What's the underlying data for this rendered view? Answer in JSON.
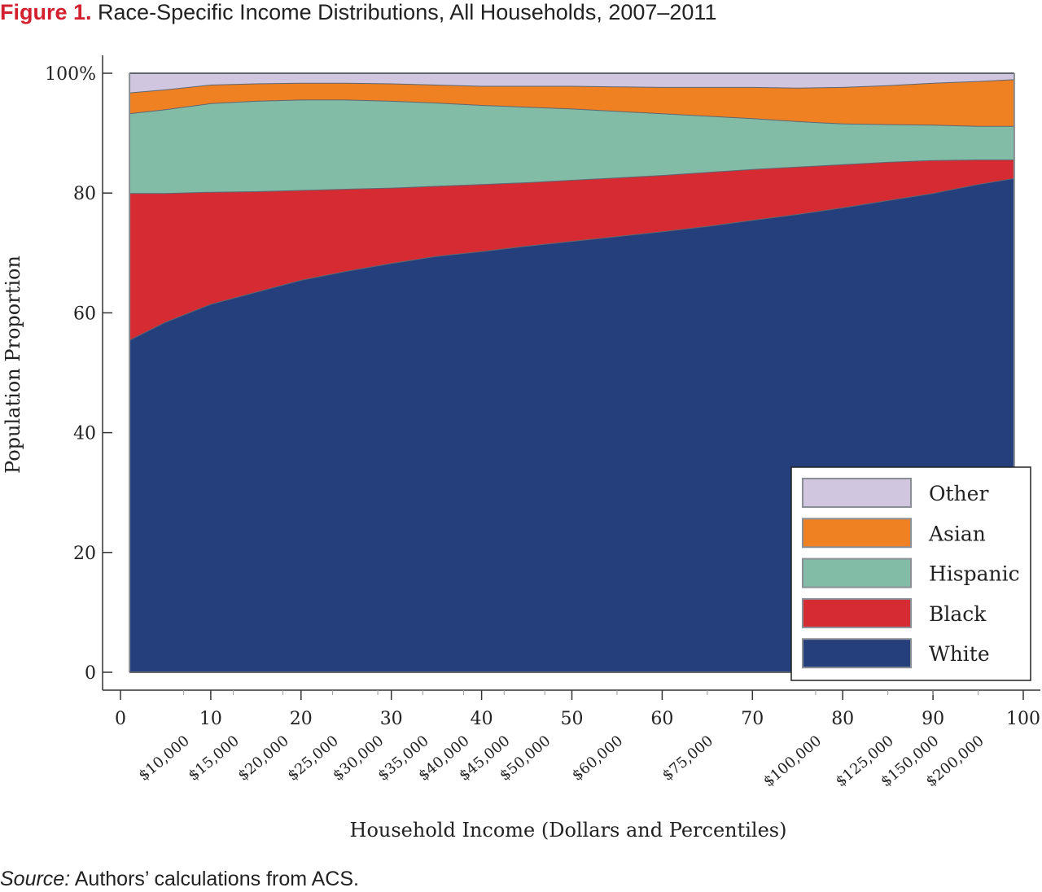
{
  "figure": {
    "label": "Figure 1.",
    "title": "Race-Specific Income Distributions, All Households, 2007–2011"
  },
  "source": {
    "label": "Source:",
    "text": "Authors’ calculations from ACS."
  },
  "chart_data": {
    "type": "area",
    "stacked": true,
    "xlabel": "Household Income (Dollars and Percentiles)",
    "ylabel": "Population Proportion",
    "xlim": [
      0,
      100
    ],
    "ylim": [
      0,
      100
    ],
    "x_ticks": [
      0,
      10,
      20,
      30,
      40,
      50,
      60,
      70,
      80,
      90,
      100
    ],
    "y_ticks": [
      {
        "value": 0,
        "label": "0"
      },
      {
        "value": 20,
        "label": "20"
      },
      {
        "value": 40,
        "label": "40"
      },
      {
        "value": 60,
        "label": "60"
      },
      {
        "value": 80,
        "label": "80"
      },
      {
        "value": 100,
        "label": "100%"
      }
    ],
    "dollar_ticks": [
      {
        "percentile": 7,
        "label": "$10,000"
      },
      {
        "percentile": 12.5,
        "label": "$15,000"
      },
      {
        "percentile": 18,
        "label": "$20,000"
      },
      {
        "percentile": 23.5,
        "label": "$25,000"
      },
      {
        "percentile": 28.5,
        "label": "$30,000"
      },
      {
        "percentile": 33.5,
        "label": "$35,000"
      },
      {
        "percentile": 38,
        "label": "$40,000"
      },
      {
        "percentile": 42.5,
        "label": "$45,000"
      },
      {
        "percentile": 47,
        "label": "$50,000"
      },
      {
        "percentile": 55,
        "label": "$60,000"
      },
      {
        "percentile": 65,
        "label": "$75,000"
      },
      {
        "percentile": 77,
        "label": "$100,000"
      },
      {
        "percentile": 85,
        "label": "$125,000"
      },
      {
        "percentile": 90,
        "label": "$150,000"
      },
      {
        "percentile": 95,
        "label": "$200,000"
      }
    ],
    "x": [
      1,
      5,
      10,
      15,
      20,
      25,
      30,
      35,
      40,
      45,
      50,
      55,
      60,
      65,
      70,
      75,
      80,
      85,
      90,
      95,
      99
    ],
    "series": [
      {
        "name": "White",
        "color": "#253f7d",
        "values": [
          55.5,
          58.5,
          61.5,
          63.5,
          65.5,
          67,
          68.3,
          69.5,
          70.3,
          71.2,
          72,
          72.8,
          73.6,
          74.5,
          75.5,
          76.5,
          77.6,
          78.8,
          80,
          81.5,
          82.5
        ]
      },
      {
        "name": "Black",
        "color": "#d62b33",
        "values": [
          24.5,
          21.5,
          18.7,
          16.8,
          15,
          13.7,
          12.6,
          11.7,
          11.2,
          10.6,
          10.2,
          9.8,
          9.4,
          9,
          8.5,
          7.9,
          7.2,
          6.4,
          5.5,
          4.1,
          3.1
        ]
      },
      {
        "name": "Hispanic",
        "color": "#82bca6",
        "values": [
          13.3,
          14,
          14.8,
          15.1,
          15.1,
          14.9,
          14.5,
          13.9,
          13.2,
          12.6,
          11.9,
          11.1,
          10.3,
          9.4,
          8.5,
          7.6,
          6.8,
          6.3,
          5.9,
          5.6,
          5.6
        ]
      },
      {
        "name": "Asian",
        "color": "#f08123",
        "values": [
          3.5,
          3.3,
          3.1,
          2.9,
          2.8,
          2.8,
          2.9,
          3,
          3.2,
          3.5,
          3.8,
          4.1,
          4.4,
          4.8,
          5.2,
          5.6,
          6.1,
          6.5,
          7,
          7.5,
          7.8
        ]
      },
      {
        "name": "Other",
        "color": "#d1c6df",
        "values": [
          3.2,
          2.7,
          1.9,
          1.7,
          1.6,
          1.6,
          1.7,
          1.9,
          2.1,
          2.1,
          2.1,
          2.2,
          2.3,
          2.3,
          2.3,
          2.4,
          2.3,
          2,
          1.6,
          1.3,
          1
        ]
      }
    ],
    "legend": {
      "position": "bottom-right",
      "order": [
        "Other",
        "Asian",
        "Hispanic",
        "Black",
        "White"
      ]
    },
    "grid": false
  }
}
